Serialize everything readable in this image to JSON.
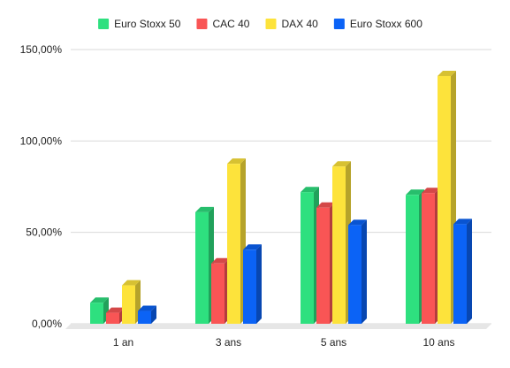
{
  "chart_data": {
    "type": "bar",
    "categories": [
      "1 an",
      "3 ans",
      "5 ans",
      "10 ans"
    ],
    "series": [
      {
        "name": "Euro Stoxx 50",
        "color": "#2ee07f",
        "values": [
          11.5,
          61,
          72,
          70.5
        ]
      },
      {
        "name": "CAC 40",
        "color": "#f95555",
        "values": [
          6,
          33,
          63.5,
          71.5
        ]
      },
      {
        "name": "DAX 40",
        "color": "#fde33b",
        "values": [
          21,
          87.5,
          86,
          135.5
        ]
      },
      {
        "name": "Euro Stoxx 600",
        "color": "#0b63f6",
        "values": [
          7,
          40.5,
          54,
          54.5
        ]
      }
    ],
    "yticks": [
      "0,00%",
      "50,00%",
      "100,00%",
      "150,00%"
    ],
    "ytick_values": [
      0,
      50,
      100,
      150
    ],
    "ylim": [
      0,
      150
    ],
    "grid": true,
    "legend": "top",
    "title": "",
    "xlabel": "",
    "ylabel": ""
  }
}
